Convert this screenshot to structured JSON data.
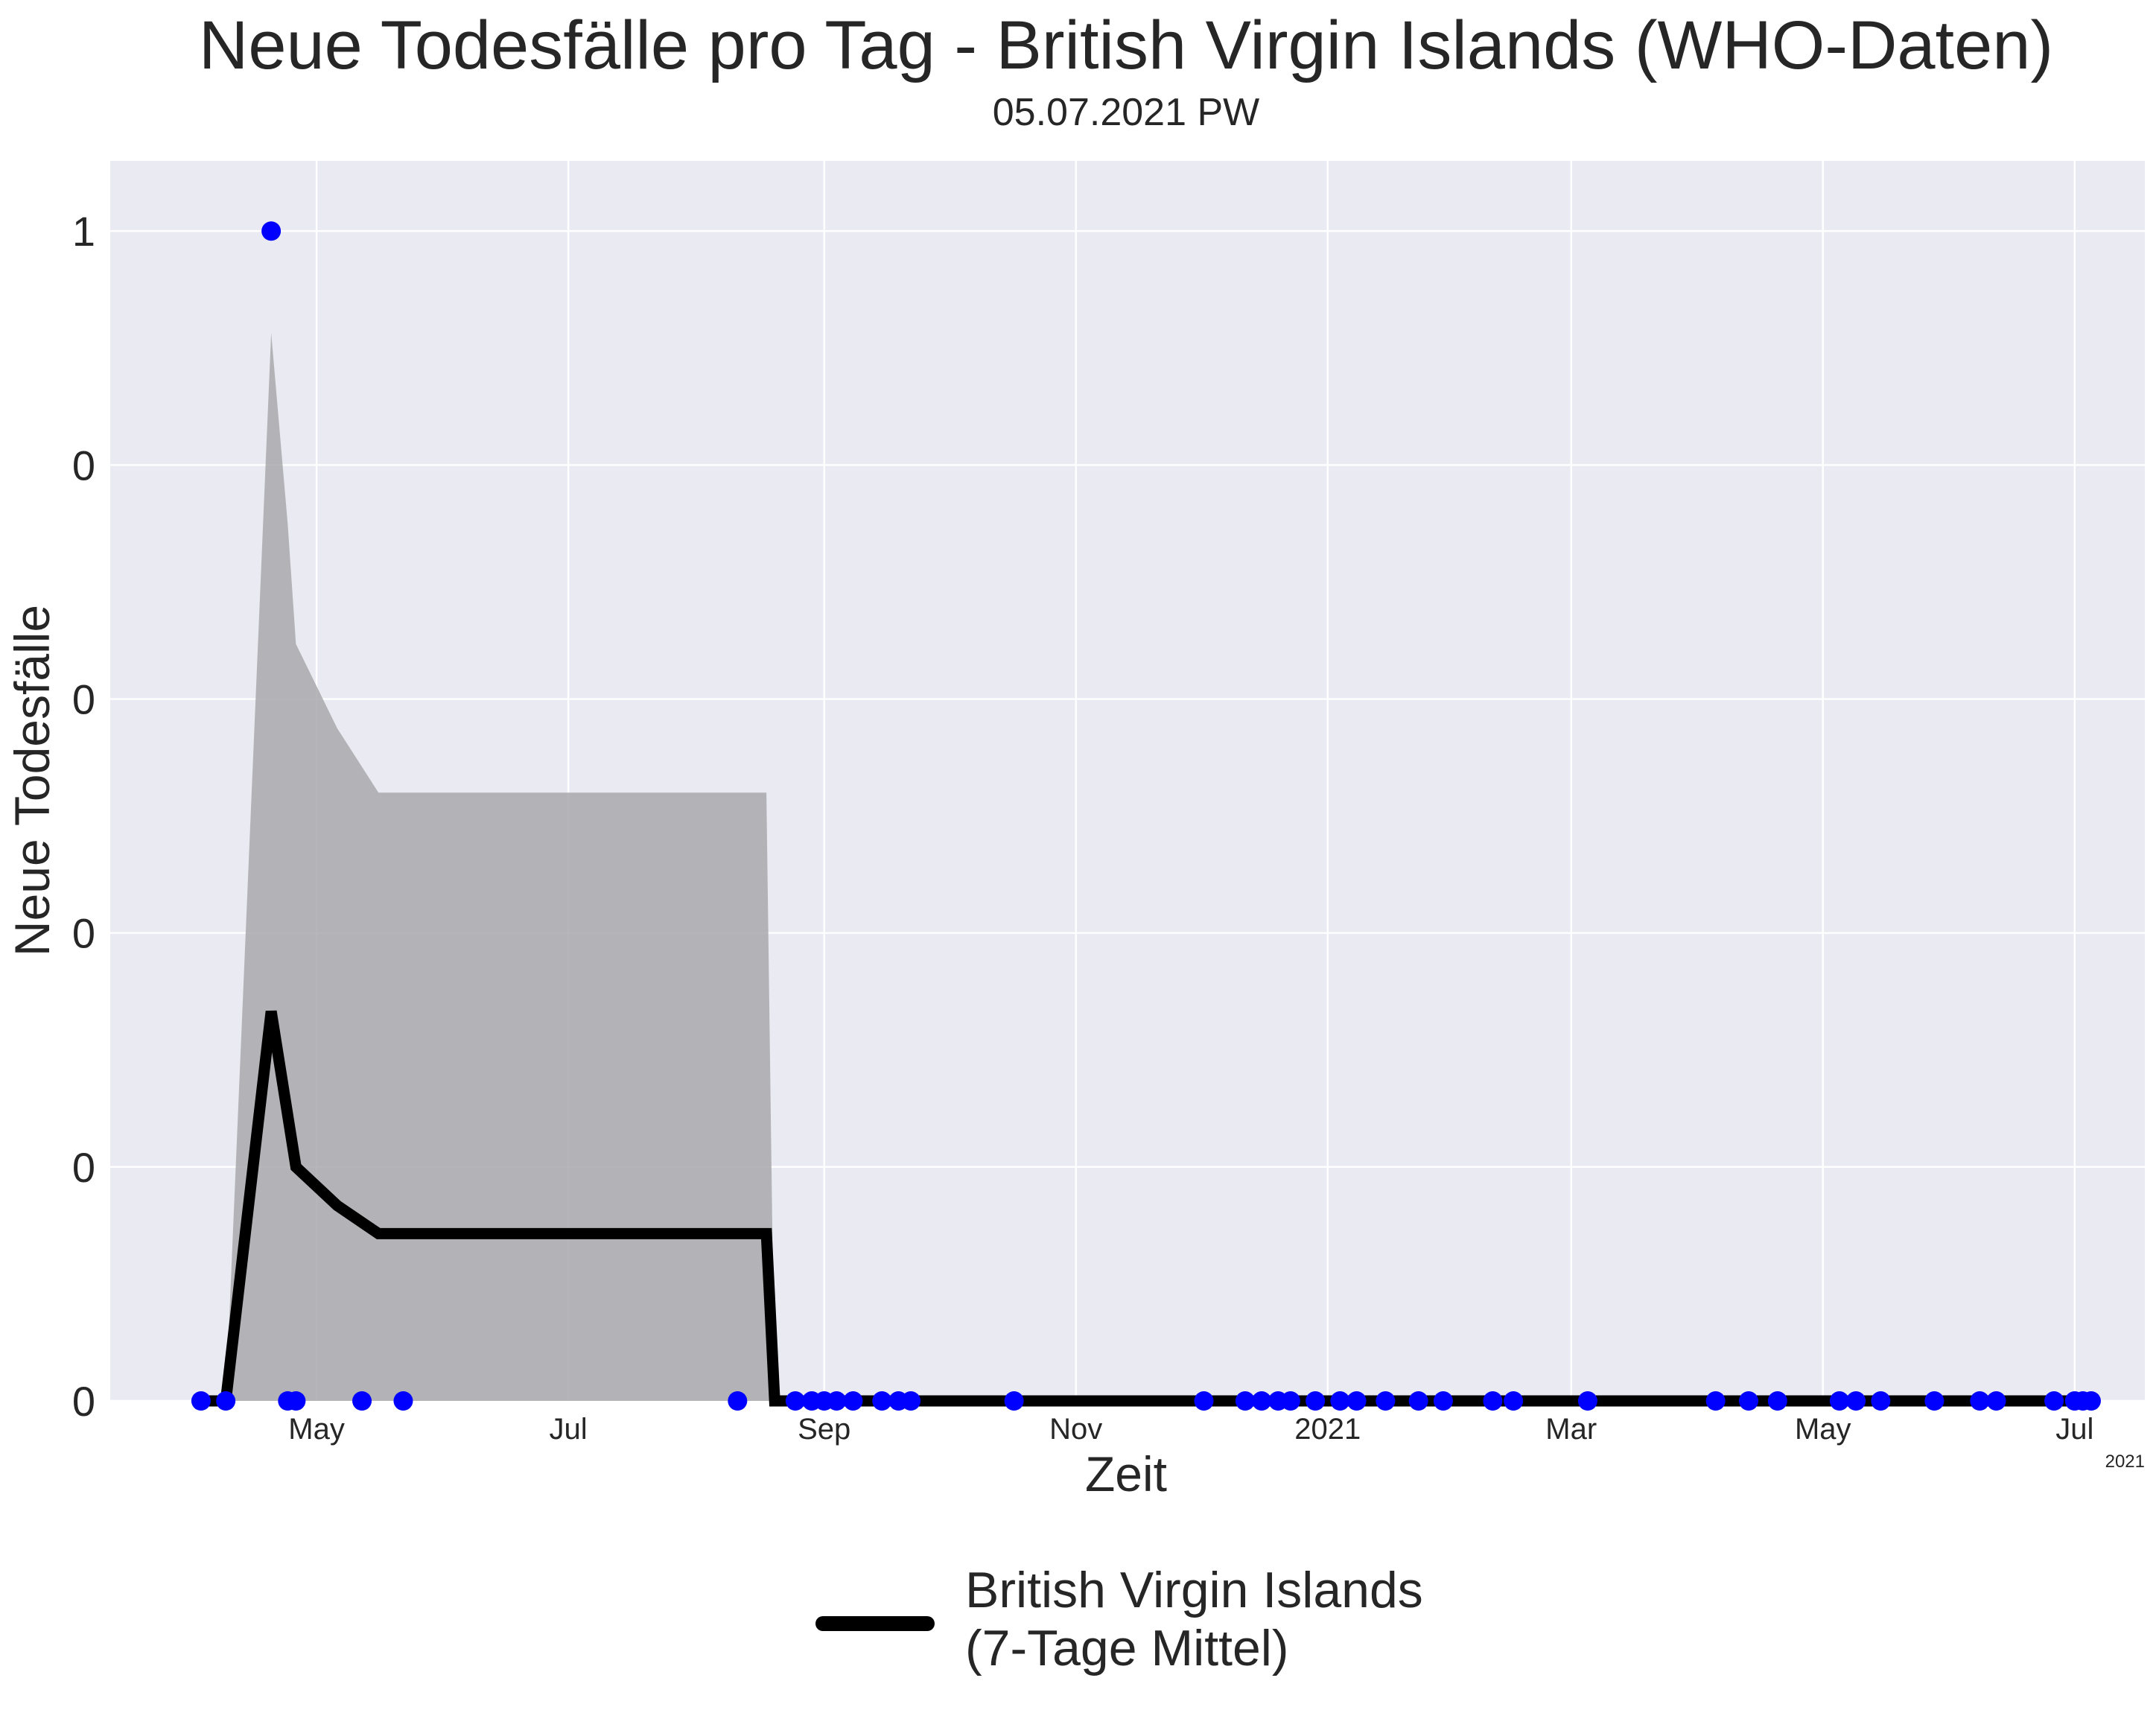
{
  "chart_data": {
    "type": "line",
    "title": "Neue Todesfälle pro Tag - British Virgin Islands (WHO-Daten)",
    "subtitle": "05.07.2021 PW",
    "xlabel": "Zeit",
    "ylabel": "Neue Todesfälle",
    "x_offset_label": "2021",
    "x_range": [
      "2020-03-12",
      "2021-07-18"
    ],
    "ylim": [
      0,
      1.06
    ],
    "y_ticks": [
      {
        "value": 0.0,
        "label": "0"
      },
      {
        "value": 0.2,
        "label": "0"
      },
      {
        "value": 0.4,
        "label": "0"
      },
      {
        "value": 0.6,
        "label": "0"
      },
      {
        "value": 0.8,
        "label": "0"
      },
      {
        "value": 1.0,
        "label": "1"
      }
    ],
    "x_ticks": [
      {
        "date": "2020-05-01",
        "label": "May"
      },
      {
        "date": "2020-07-01",
        "label": "Jul"
      },
      {
        "date": "2020-09-01",
        "label": "Sep"
      },
      {
        "date": "2020-11-01",
        "label": "Nov"
      },
      {
        "date": "2021-01-01",
        "label": "2021"
      },
      {
        "date": "2021-03-01",
        "label": "Mar"
      },
      {
        "date": "2021-05-01",
        "label": "May"
      },
      {
        "date": "2021-07-01",
        "label": "Jul"
      }
    ],
    "grid": true,
    "legend_position": "bottom-center",
    "series": [
      {
        "name": "British Virgin Islands\n(7-Tage Mittel)",
        "kind": "line",
        "color": "#000000",
        "points": [
          [
            "2020-04-03",
            0
          ],
          [
            "2020-04-09",
            0
          ],
          [
            "2020-04-20",
            0.333
          ],
          [
            "2020-04-26",
            0.2
          ],
          [
            "2020-05-06",
            0.167
          ],
          [
            "2020-05-16",
            0.143
          ],
          [
            "2020-08-18",
            0.143
          ],
          [
            "2020-08-20",
            0
          ],
          [
            "2021-07-06",
            0
          ]
        ]
      },
      {
        "name": "",
        "kind": "band",
        "color": "#a9a9ad",
        "upper": [
          [
            "2020-04-09",
            0
          ],
          [
            "2020-04-20",
            0.913
          ],
          [
            "2020-04-24",
            0.75
          ],
          [
            "2020-04-26",
            0.647
          ],
          [
            "2020-05-06",
            0.575
          ],
          [
            "2020-05-16",
            0.52
          ],
          [
            "2020-08-18",
            0.52
          ],
          [
            "2020-08-20",
            0
          ]
        ]
      },
      {
        "name": "",
        "kind": "scatter",
        "color": "#0000ff",
        "points": [
          [
            "2020-04-03",
            0
          ],
          [
            "2020-04-09",
            0
          ],
          [
            "2020-04-20",
            1
          ],
          [
            "2020-04-24",
            0
          ],
          [
            "2020-04-26",
            0
          ],
          [
            "2020-05-12",
            0
          ],
          [
            "2020-05-22",
            0
          ],
          [
            "2020-08-11",
            0
          ],
          [
            "2020-08-25",
            0
          ],
          [
            "2020-08-29",
            0
          ],
          [
            "2020-09-01",
            0
          ],
          [
            "2020-09-04",
            0
          ],
          [
            "2020-09-08",
            0
          ],
          [
            "2020-09-15",
            0
          ],
          [
            "2020-09-19",
            0
          ],
          [
            "2020-09-22",
            0
          ],
          [
            "2020-10-17",
            0
          ],
          [
            "2020-12-02",
            0
          ],
          [
            "2020-12-12",
            0
          ],
          [
            "2020-12-16",
            0
          ],
          [
            "2020-12-20",
            0
          ],
          [
            "2020-12-23",
            0
          ],
          [
            "2020-12-29",
            0
          ],
          [
            "2021-01-04",
            0
          ],
          [
            "2021-01-08",
            0
          ],
          [
            "2021-01-15",
            0
          ],
          [
            "2021-01-23",
            0
          ],
          [
            "2021-01-29",
            0
          ],
          [
            "2021-02-10",
            0
          ],
          [
            "2021-02-15",
            0
          ],
          [
            "2021-03-05",
            0
          ],
          [
            "2021-04-05",
            0
          ],
          [
            "2021-04-13",
            0
          ],
          [
            "2021-04-20",
            0
          ],
          [
            "2021-05-05",
            0
          ],
          [
            "2021-05-09",
            0
          ],
          [
            "2021-05-15",
            0
          ],
          [
            "2021-05-28",
            0
          ],
          [
            "2021-06-08",
            0
          ],
          [
            "2021-06-12",
            0
          ],
          [
            "2021-06-26",
            0
          ],
          [
            "2021-07-01",
            0
          ],
          [
            "2021-07-03",
            0
          ],
          [
            "2021-07-05",
            0
          ]
        ]
      }
    ]
  }
}
